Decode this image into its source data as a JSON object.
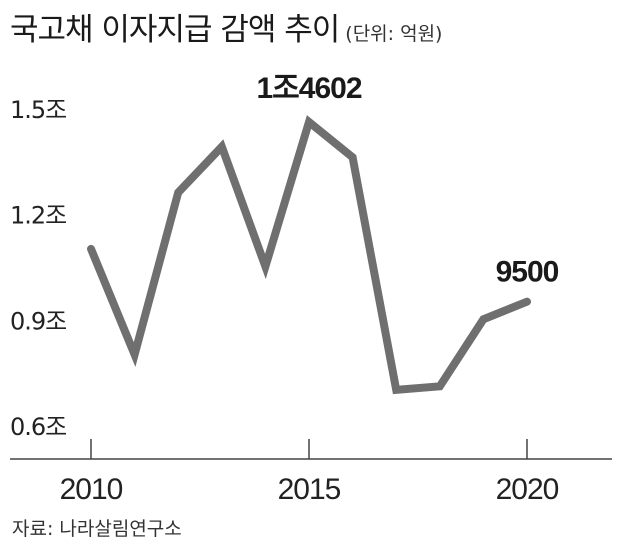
{
  "header": {
    "title": "국고채 이자지급 감액 추이",
    "unit": "(단위: 억원)"
  },
  "source": "자료: 나라살림연구소",
  "colors": {
    "line": "#6f6f6f",
    "axis": "#444444",
    "text": "#222222"
  },
  "chart_data": {
    "type": "line",
    "title": "국고채 이자지급 감액 추이",
    "x": [
      2010,
      2011,
      2012,
      2013,
      2014,
      2015,
      2016,
      2017,
      2018,
      2019,
      2020
    ],
    "series": [
      {
        "values": [
          11000,
          8000,
          12600,
          13900,
          10500,
          14602,
          13600,
          7000,
          7100,
          9000,
          9500
        ]
      }
    ],
    "xticks": [
      2010,
      2015,
      2020
    ],
    "xtick_labels": [
      "2010",
      "2015",
      "2020"
    ],
    "yticks": [
      6000,
      9000,
      12000,
      15000
    ],
    "ytick_labels": [
      "0.6조",
      "0.9조",
      "1.2조",
      "1.5조"
    ],
    "xlim": [
      2010,
      2022
    ],
    "ylim": [
      6000,
      15000
    ],
    "grid": false,
    "annotations": [
      {
        "x": 2015,
        "y": 14602,
        "text": "1조4602"
      },
      {
        "x": 2020,
        "y": 9500,
        "text": "9500"
      }
    ]
  }
}
